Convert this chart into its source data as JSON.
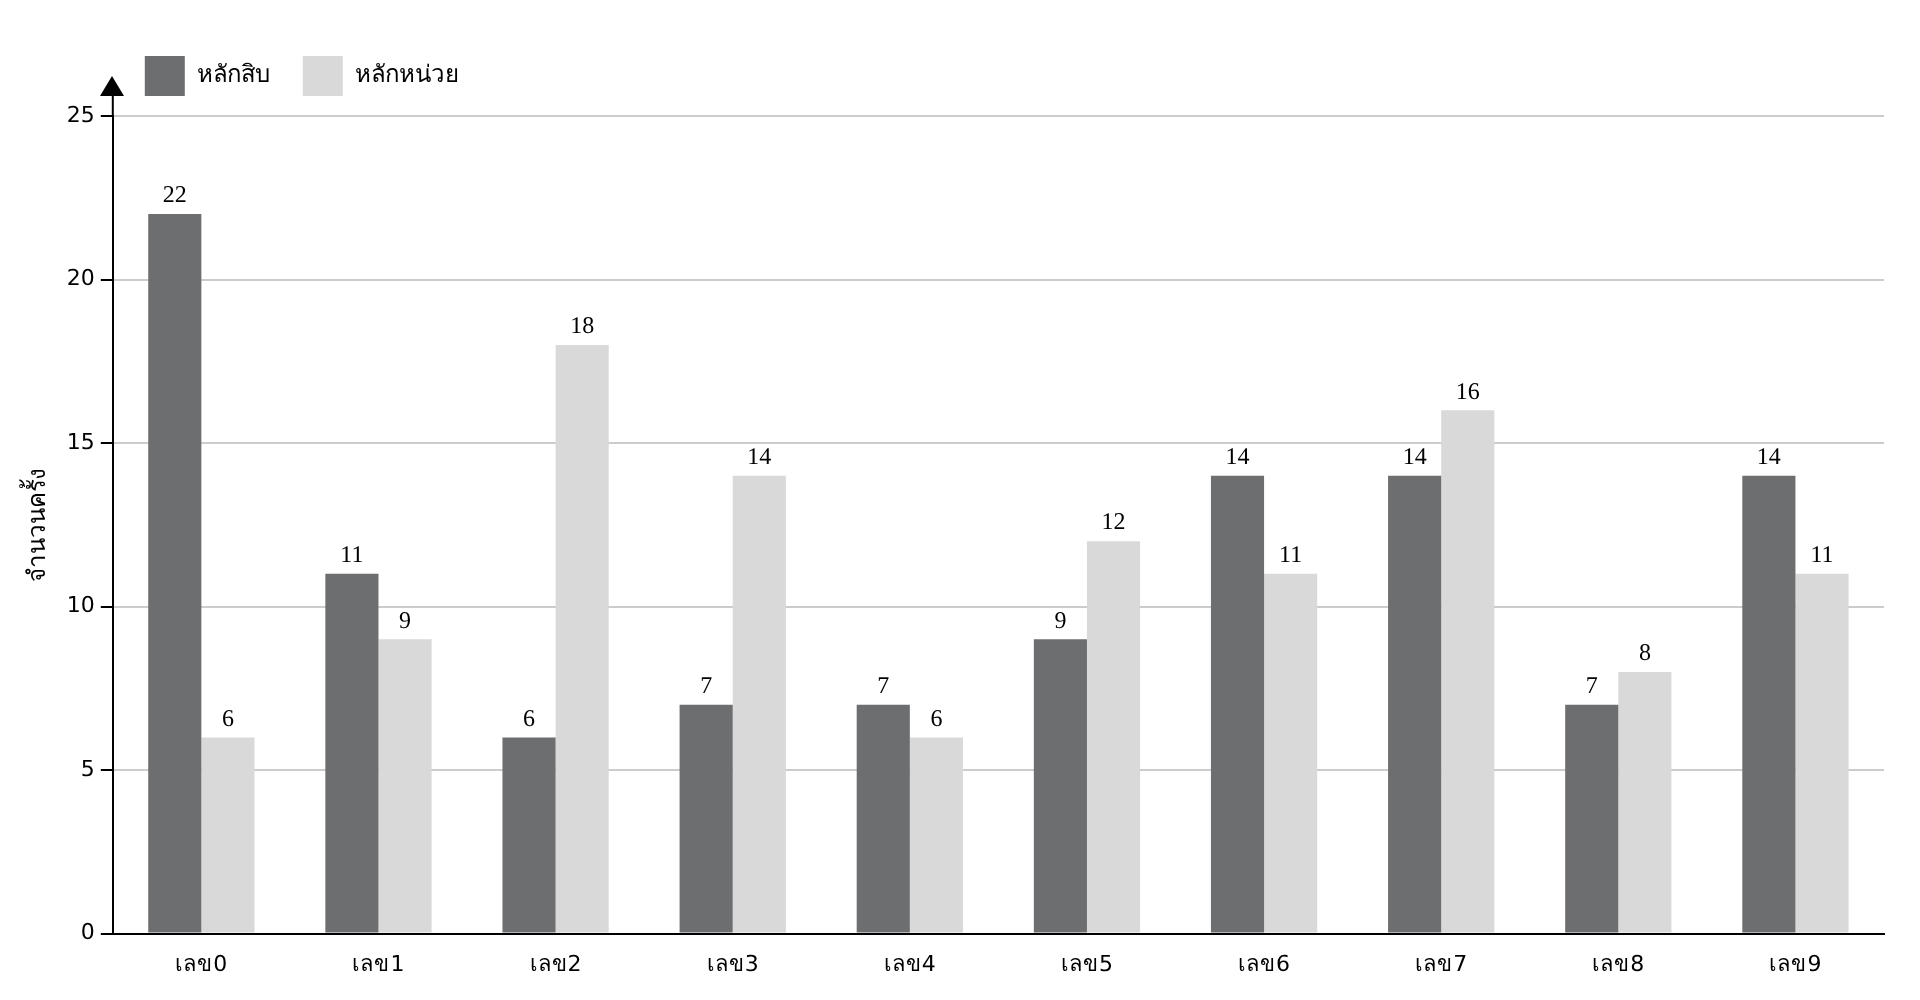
{
  "chart_data": {
    "type": "bar",
    "ylabel": "จำนวนครั้ง",
    "categories": [
      "เลข0",
      "เลข1",
      "เลข2",
      "เลข3",
      "เลข4",
      "เลข5",
      "เลข6",
      "เลข7",
      "เลข8",
      "เลข9"
    ],
    "series": [
      {
        "name": "หลักสิบ",
        "color": "#6d6e70",
        "values": [
          22,
          11,
          6,
          7,
          7,
          9,
          14,
          14,
          7,
          14
        ]
      },
      {
        "name": "หลักหน่วย",
        "color": "#d9d9d9",
        "values": [
          6,
          9,
          18,
          14,
          6,
          12,
          11,
          16,
          8,
          11
        ]
      }
    ],
    "ylim": [
      0,
      25
    ],
    "yticks": [
      0,
      5,
      10,
      15,
      20,
      25
    ],
    "grid": "y",
    "legend": "top left",
    "data_labels": true
  }
}
